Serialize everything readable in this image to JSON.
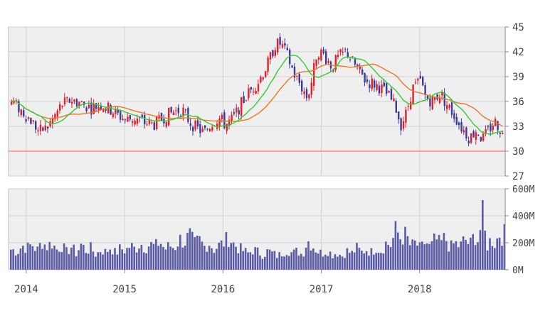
{
  "chart_data": {
    "type": "candlestick",
    "price_panel": {
      "y_ticks": [
        "45",
        "42",
        "39",
        "36",
        "33",
        "30",
        "27"
      ],
      "ylim": [
        27,
        45
      ],
      "reference_line": 30,
      "grid": true
    },
    "volume_panel": {
      "y_ticks": [
        "600M",
        "400M",
        "200M",
        "0M"
      ],
      "ylim": [
        0,
        600
      ],
      "unit": "M",
      "grid": true
    },
    "x_ticks": [
      "2014",
      "2015",
      "2016",
      "2017",
      "2018"
    ],
    "x_range": [
      2013.82,
      2018.87
    ],
    "price_series": [
      [
        2013.85,
        36.0
      ],
      [
        2013.95,
        34.8
      ],
      [
        2014.05,
        33.6
      ],
      [
        2014.12,
        32.4
      ],
      [
        2014.2,
        32.8
      ],
      [
        2014.28,
        34.2
      ],
      [
        2014.35,
        35.6
      ],
      [
        2014.45,
        36.2
      ],
      [
        2014.55,
        35.8
      ],
      [
        2014.65,
        35.2
      ],
      [
        2014.75,
        35.6
      ],
      [
        2014.85,
        35.0
      ],
      [
        2014.92,
        34.4
      ],
      [
        2015.0,
        33.8
      ],
      [
        2015.1,
        34.0
      ],
      [
        2015.2,
        33.4
      ],
      [
        2015.3,
        33.2
      ],
      [
        2015.4,
        34.2
      ],
      [
        2015.5,
        34.8
      ],
      [
        2015.58,
        35.0
      ],
      [
        2015.65,
        33.6
      ],
      [
        2015.72,
        32.8
      ],
      [
        2015.8,
        32.2
      ],
      [
        2015.88,
        33.4
      ],
      [
        2015.95,
        34.0
      ],
      [
        2016.02,
        33.2
      ],
      [
        2016.1,
        34.0
      ],
      [
        2016.17,
        35.6
      ],
      [
        2016.25,
        37.0
      ],
      [
        2016.35,
        38.4
      ],
      [
        2016.45,
        40.6
      ],
      [
        2016.52,
        42.8
      ],
      [
        2016.58,
        43.0
      ],
      [
        2016.65,
        41.4
      ],
      [
        2016.72,
        39.2
      ],
      [
        2016.8,
        37.6
      ],
      [
        2016.85,
        36.4
      ],
      [
        2016.9,
        38.8
      ],
      [
        2016.95,
        42.2
      ],
      [
        2017.02,
        41.6
      ],
      [
        2017.1,
        40.2
      ],
      [
        2017.17,
        41.4
      ],
      [
        2017.25,
        42.0
      ],
      [
        2017.3,
        41.0
      ],
      [
        2017.38,
        39.6
      ],
      [
        2017.45,
        38.4
      ],
      [
        2017.52,
        38.2
      ],
      [
        2017.6,
        37.6
      ],
      [
        2017.68,
        36.6
      ],
      [
        2017.75,
        35.2
      ],
      [
        2017.8,
        33.2
      ],
      [
        2017.85,
        34.4
      ],
      [
        2017.92,
        37.6
      ],
      [
        2018.0,
        38.4
      ],
      [
        2018.05,
        36.6
      ],
      [
        2018.12,
        36.0
      ],
      [
        2018.2,
        37.0
      ],
      [
        2018.27,
        35.6
      ],
      [
        2018.35,
        34.2
      ],
      [
        2018.42,
        32.8
      ],
      [
        2018.5,
        31.6
      ],
      [
        2018.57,
        32.6
      ],
      [
        2018.63,
        31.4
      ],
      [
        2018.7,
        32.6
      ],
      [
        2018.75,
        33.6
      ],
      [
        2018.8,
        33.0
      ],
      [
        2018.84,
        31.8
      ],
      [
        2018.86,
        29.8
      ]
    ],
    "volume_series": [
      [
        2013.85,
        150
      ],
      [
        2013.9,
        130
      ],
      [
        2013.95,
        180
      ],
      [
        2014.0,
        160
      ],
      [
        2014.05,
        190
      ],
      [
        2014.1,
        140
      ],
      [
        2014.15,
        210
      ],
      [
        2014.2,
        170
      ],
      [
        2014.25,
        200
      ],
      [
        2014.3,
        150
      ],
      [
        2014.35,
        180
      ],
      [
        2014.4,
        130
      ],
      [
        2014.45,
        170
      ],
      [
        2014.5,
        120
      ],
      [
        2014.55,
        190
      ],
      [
        2014.6,
        140
      ],
      [
        2014.65,
        160
      ],
      [
        2014.7,
        110
      ],
      [
        2014.75,
        150
      ],
      [
        2014.8,
        130
      ],
      [
        2014.85,
        170
      ],
      [
        2014.9,
        120
      ],
      [
        2014.95,
        160
      ],
      [
        2015.0,
        140
      ],
      [
        2015.05,
        180
      ],
      [
        2015.1,
        150
      ],
      [
        2015.15,
        200
      ],
      [
        2015.2,
        160
      ],
      [
        2015.25,
        190
      ],
      [
        2015.3,
        170
      ],
      [
        2015.35,
        210
      ],
      [
        2015.4,
        150
      ],
      [
        2015.45,
        180
      ],
      [
        2015.5,
        160
      ],
      [
        2015.55,
        230
      ],
      [
        2015.6,
        200
      ],
      [
        2015.65,
        260
      ],
      [
        2015.7,
        190
      ],
      [
        2015.75,
        220
      ],
      [
        2015.8,
        170
      ],
      [
        2015.85,
        200
      ],
      [
        2015.9,
        150
      ],
      [
        2015.95,
        180
      ],
      [
        2016.0,
        200
      ],
      [
        2016.05,
        240
      ],
      [
        2016.1,
        190
      ],
      [
        2016.15,
        160
      ],
      [
        2016.2,
        140
      ],
      [
        2016.25,
        120
      ],
      [
        2016.3,
        150
      ],
      [
        2016.35,
        130
      ],
      [
        2016.4,
        110
      ],
      [
        2016.45,
        140
      ],
      [
        2016.5,
        120
      ],
      [
        2016.55,
        100
      ],
      [
        2016.6,
        130
      ],
      [
        2016.65,
        150
      ],
      [
        2016.7,
        120
      ],
      [
        2016.75,
        140
      ],
      [
        2016.8,
        110
      ],
      [
        2016.85,
        220
      ],
      [
        2016.9,
        180
      ],
      [
        2016.95,
        140
      ],
      [
        2017.0,
        120
      ],
      [
        2017.05,
        150
      ],
      [
        2017.1,
        110
      ],
      [
        2017.15,
        130
      ],
      [
        2017.2,
        100
      ],
      [
        2017.25,
        140
      ],
      [
        2017.3,
        120
      ],
      [
        2017.35,
        160
      ],
      [
        2017.4,
        130
      ],
      [
        2017.45,
        150
      ],
      [
        2017.5,
        130
      ],
      [
        2017.55,
        170
      ],
      [
        2017.6,
        140
      ],
      [
        2017.65,
        200
      ],
      [
        2017.7,
        180
      ],
      [
        2017.75,
        300
      ],
      [
        2017.8,
        230
      ],
      [
        2017.85,
        260
      ],
      [
        2017.9,
        170
      ],
      [
        2017.95,
        200
      ],
      [
        2018.0,
        150
      ],
      [
        2018.05,
        210
      ],
      [
        2018.1,
        160
      ],
      [
        2018.15,
        230
      ],
      [
        2018.2,
        190
      ],
      [
        2018.25,
        240
      ],
      [
        2018.3,
        160
      ],
      [
        2018.35,
        200
      ],
      [
        2018.4,
        170
      ],
      [
        2018.45,
        230
      ],
      [
        2018.5,
        180
      ],
      [
        2018.55,
        260
      ],
      [
        2018.6,
        200
      ],
      [
        2018.62,
        500
      ],
      [
        2018.64,
        320
      ],
      [
        2018.68,
        180
      ],
      [
        2018.72,
        230
      ],
      [
        2018.76,
        190
      ],
      [
        2018.8,
        270
      ],
      [
        2018.84,
        240
      ],
      [
        2018.86,
        280
      ]
    ]
  },
  "colors": {
    "panel_bg": "#efefef",
    "grid": "#d3d3d3",
    "frame": "#bdbdbd",
    "axis": "#888888",
    "axis_text": "#444444",
    "up_candle": "#e3202a",
    "down_candle": "#3b3b99",
    "ma_short": "#33cc33",
    "ma_long": "#ee7722",
    "reference_line": "#ff7777",
    "volume_bar": "#5b5ba6"
  }
}
